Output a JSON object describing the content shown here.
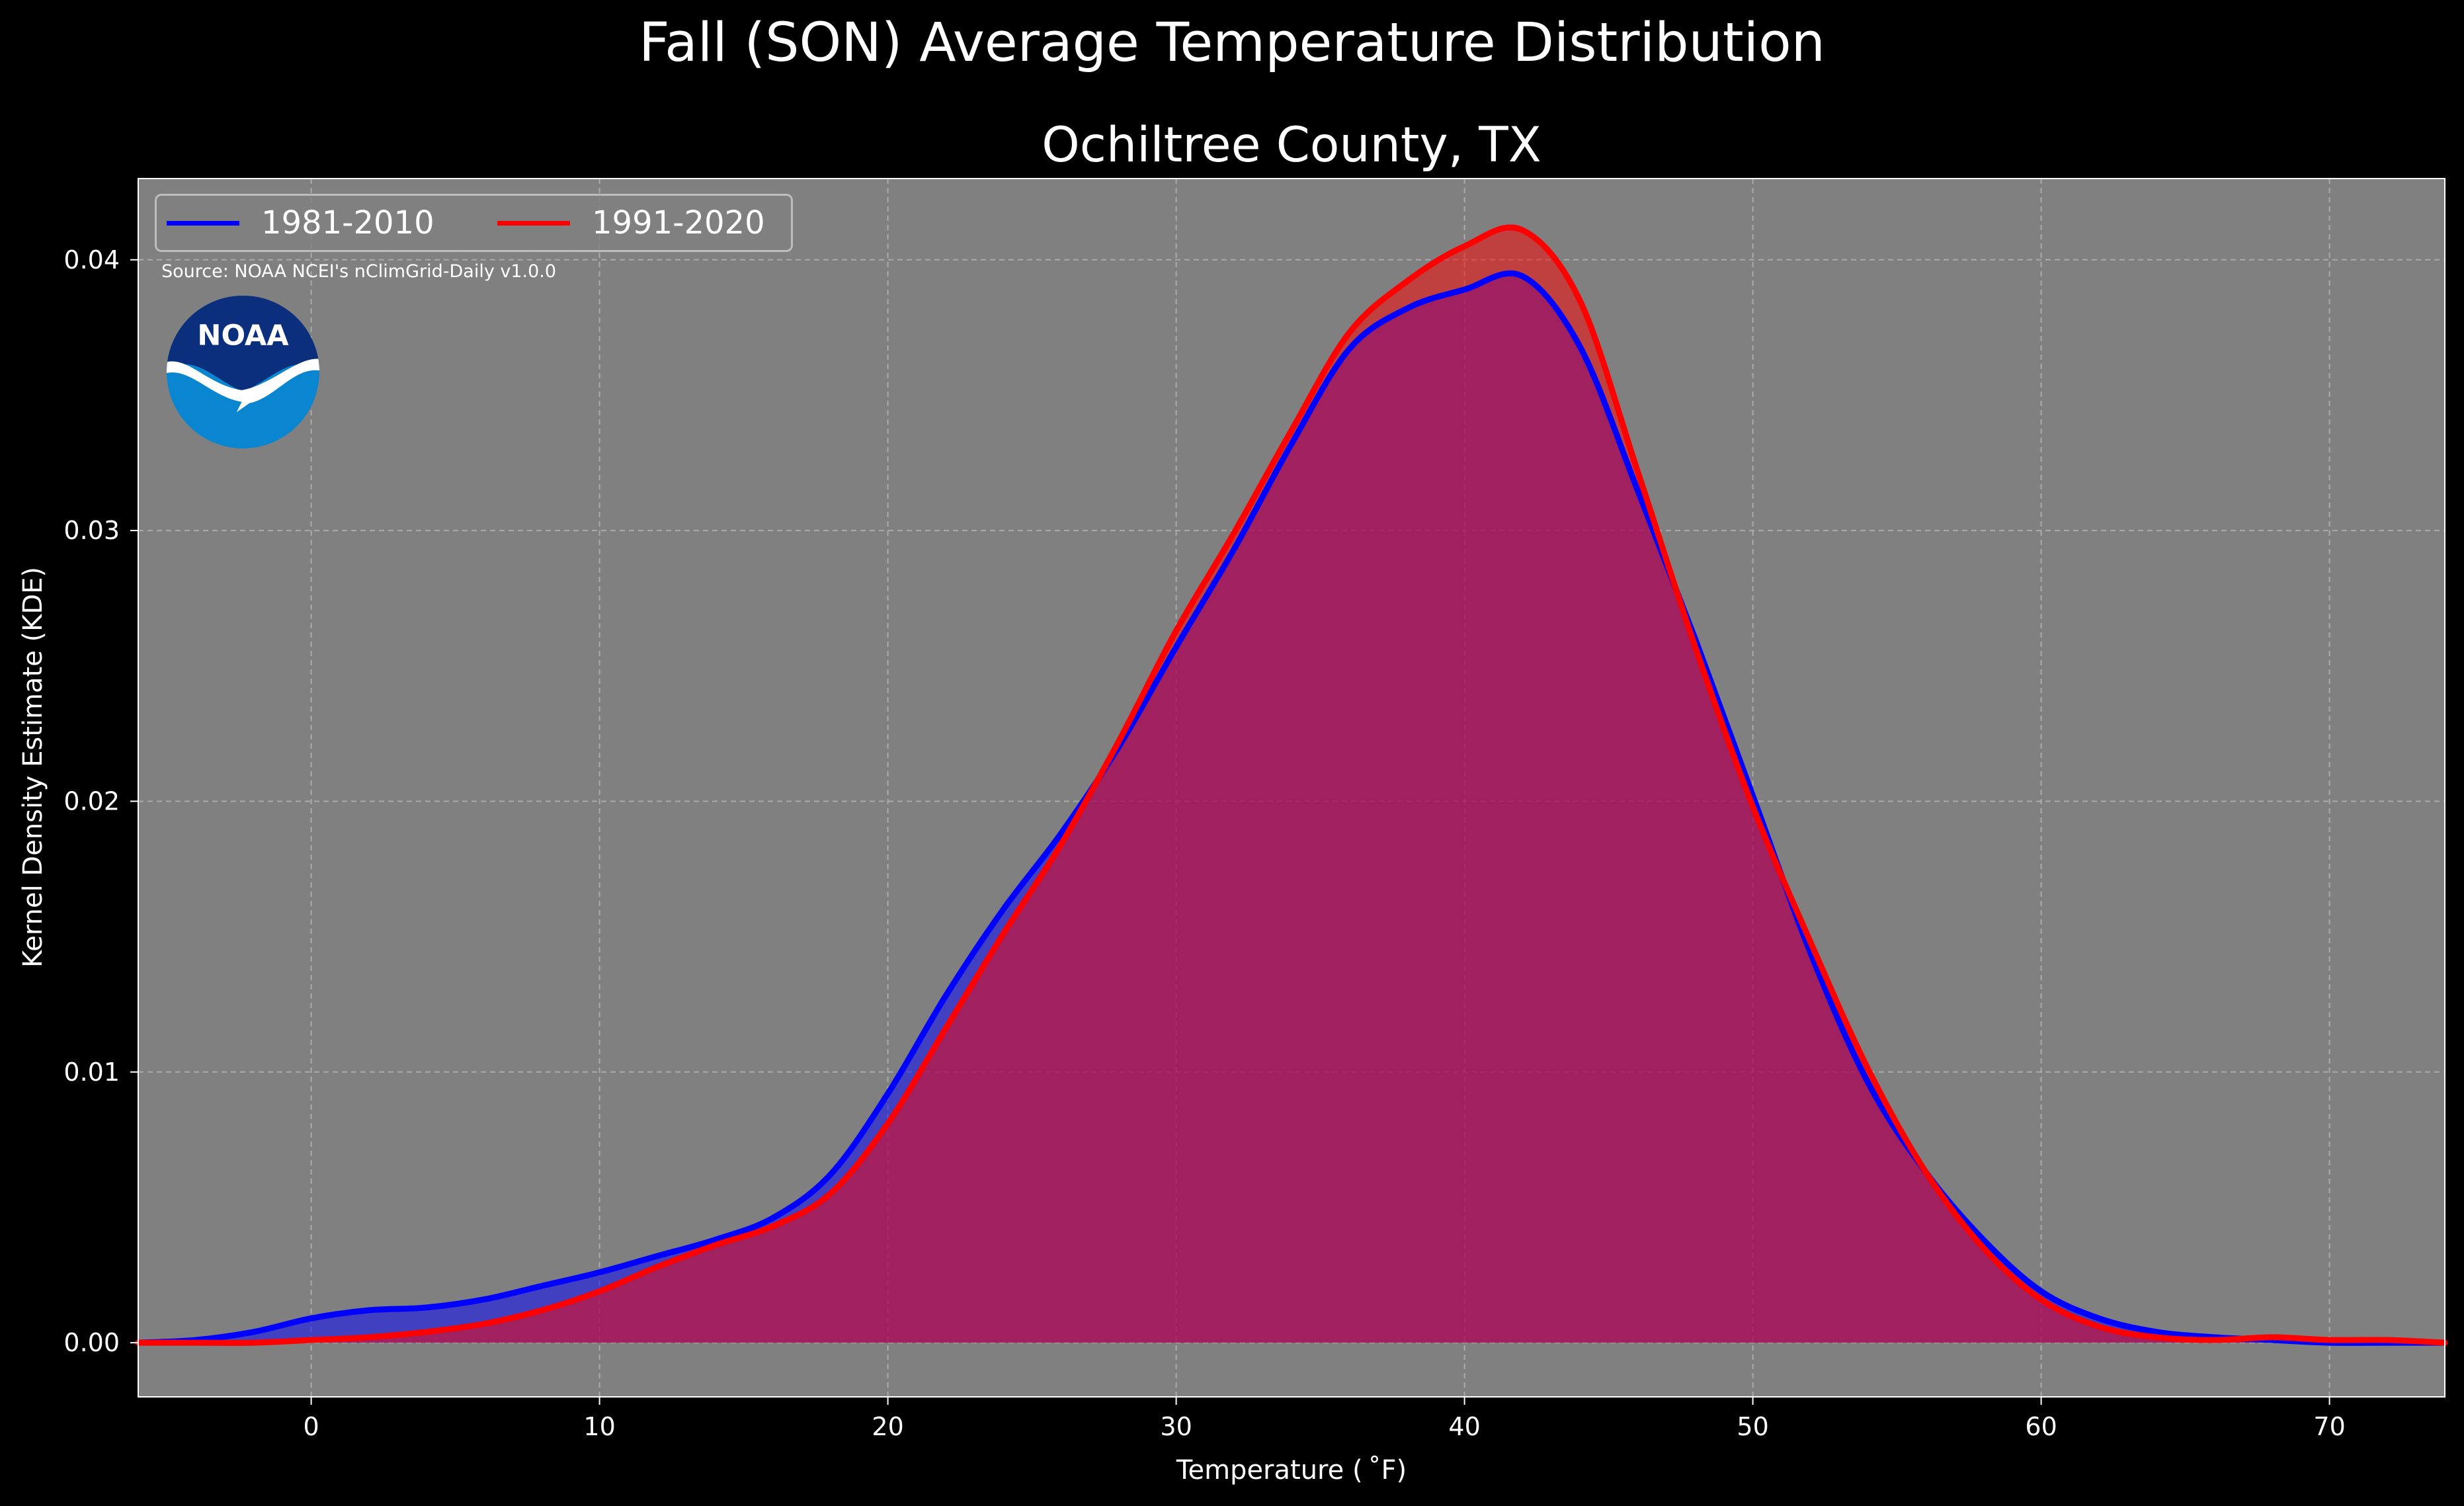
{
  "title": "Fall (SON) Average Temperature Distribution",
  "subtitle": "Ochiltree County, TX",
  "source_note": "Source: NOAA NCEI's nClimGrid-Daily v1.0.0",
  "logo_text": "NOAA",
  "colors": {
    "background": "#000000",
    "plot_background": "#808080",
    "series_1981_2010": "#0000ff",
    "series_1991_2020": "#ff0000",
    "fill_1981_2010": "rgba(0,0,255,0.5)",
    "fill_1991_2020": "rgba(255,0,0,0.5)",
    "text": "#ffffff",
    "grid": "#c7c7c7"
  },
  "chart_data": {
    "type": "area",
    "title": "Fall (SON) Average Temperature Distribution",
    "subtitle": "Ochiltree County, TX",
    "xlabel": "Temperature ($^\\circ$F)",
    "xlabel_display": "Temperature ( ˚F)",
    "ylabel": "Kernel Density Estimate (KDE)",
    "xlim": [
      -6,
      74
    ],
    "ylim": [
      -0.002,
      0.043
    ],
    "xticks": [
      0,
      10,
      20,
      30,
      40,
      50,
      60,
      70
    ],
    "xtick_labels": [
      "0",
      "10",
      "20",
      "30",
      "40",
      "50",
      "60",
      "70"
    ],
    "yticks": [
      0.0,
      0.01,
      0.02,
      0.03,
      0.04
    ],
    "ytick_labels": [
      "0.00",
      "0.01",
      "0.02",
      "0.03",
      "0.04"
    ],
    "grid": true,
    "legend": "upper-left",
    "series": [
      {
        "name": "1981-2010",
        "color": "#0000ff",
        "x": [
          -6,
          -4,
          -2,
          0,
          2,
          4,
          6,
          8,
          10,
          12,
          14,
          16,
          18,
          20,
          22,
          24,
          26,
          28,
          30,
          32,
          34,
          36,
          38,
          40,
          42,
          44,
          46,
          48,
          50,
          52,
          54,
          56,
          58,
          60,
          62,
          64,
          66,
          68,
          70,
          72,
          74
        ],
        "y": [
          0.0,
          0.0001,
          0.0004,
          0.0009,
          0.0012,
          0.0013,
          0.0016,
          0.0021,
          0.0026,
          0.0032,
          0.0038,
          0.0046,
          0.0062,
          0.0092,
          0.0128,
          0.016,
          0.0188,
          0.022,
          0.0257,
          0.0293,
          0.0332,
          0.0367,
          0.0382,
          0.0389,
          0.0394,
          0.0368,
          0.0315,
          0.026,
          0.0202,
          0.0144,
          0.0096,
          0.0063,
          0.0038,
          0.0019,
          0.0009,
          0.0004,
          0.0002,
          0.0001,
          0.0,
          0.0,
          0.0
        ]
      },
      {
        "name": "1991-2020",
        "color": "#ff0000",
        "x": [
          -6,
          -4,
          -2,
          0,
          2,
          4,
          6,
          8,
          10,
          12,
          14,
          16,
          18,
          20,
          22,
          24,
          26,
          28,
          30,
          32,
          34,
          36,
          38,
          40,
          42,
          44,
          46,
          48,
          50,
          52,
          54,
          56,
          58,
          60,
          62,
          64,
          66,
          68,
          70,
          72,
          74
        ],
        "y": [
          0.0,
          0.0,
          0.0,
          0.0001,
          0.0002,
          0.0004,
          0.0007,
          0.0012,
          0.0019,
          0.0028,
          0.0036,
          0.0043,
          0.0055,
          0.0081,
          0.0116,
          0.0151,
          0.0184,
          0.0222,
          0.0263,
          0.0299,
          0.0337,
          0.0373,
          0.0392,
          0.0405,
          0.0411,
          0.0385,
          0.0322,
          0.0257,
          0.0198,
          0.0148,
          0.0101,
          0.0063,
          0.0035,
          0.0016,
          0.0006,
          0.0002,
          0.0001,
          0.0002,
          0.0001,
          0.0001,
          0.0
        ]
      }
    ]
  }
}
